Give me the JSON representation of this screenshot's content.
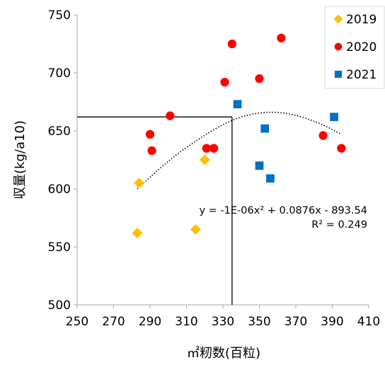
{
  "chart_data": {
    "type": "scatter",
    "title": "",
    "xlabel": "㎡籾数(百粒)",
    "ylabel": "収量(kg/a10)",
    "xlim": [
      250,
      410
    ],
    "ylim": [
      500,
      750
    ],
    "xticks": [
      250,
      270,
      290,
      310,
      330,
      350,
      370,
      390,
      410
    ],
    "yticks": [
      500,
      550,
      600,
      650,
      700,
      750
    ],
    "grid": false,
    "legend_position": "top-right",
    "series": [
      {
        "name": "2019",
        "marker": "diamond",
        "color": "#FFC000",
        "points": [
          [
            283,
            562
          ],
          [
            284,
            605
          ],
          [
            315,
            565
          ],
          [
            320,
            625
          ]
        ]
      },
      {
        "name": "2020",
        "marker": "circle",
        "color": "#FF0000",
        "points": [
          [
            290,
            647
          ],
          [
            291,
            633
          ],
          [
            301,
            663
          ],
          [
            321,
            635
          ],
          [
            325,
            635
          ],
          [
            331,
            692
          ],
          [
            335,
            725
          ],
          [
            350,
            695
          ],
          [
            362,
            730
          ],
          [
            385,
            646
          ],
          [
            395,
            635
          ]
        ]
      },
      {
        "name": "2021",
        "marker": "square",
        "color": "#0070C0",
        "points": [
          [
            338,
            673
          ],
          [
            350,
            620
          ],
          [
            353,
            652
          ],
          [
            356,
            609
          ],
          [
            391,
            662
          ]
        ]
      }
    ],
    "trendline": {
      "type": "polynomial",
      "order": 2,
      "style": "dotted",
      "color": "#000000",
      "x_range": [
        283,
        395
      ],
      "samples": [
        [
          283,
          600
        ],
        [
          295,
          617
        ],
        [
          305,
          630
        ],
        [
          315,
          641
        ],
        [
          325,
          651
        ],
        [
          335,
          659
        ],
        [
          345,
          664
        ],
        [
          355,
          666
        ],
        [
          365,
          665
        ],
        [
          375,
          661
        ],
        [
          385,
          655
        ],
        [
          395,
          647
        ]
      ]
    },
    "equation_lines": [
      "y = -1E-06x² + 0.0876x - 893.54",
      "R² = 0.249"
    ],
    "reference_point": {
      "x": 335,
      "y": 662
    }
  }
}
